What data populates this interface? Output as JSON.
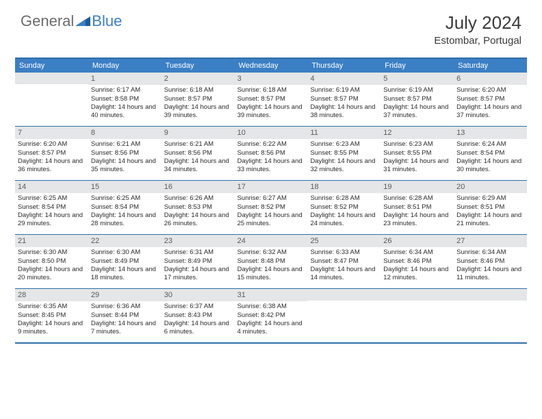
{
  "logo": {
    "textA": "General",
    "textB": "Blue"
  },
  "title": {
    "month": "July 2024",
    "location": "Estombar, Portugal"
  },
  "colors": {
    "header_bg": "#3b7fc4",
    "header_text": "#ffffff",
    "border": "#2f6fa8",
    "daynum_bg": "#e4e6e8",
    "daynum_text": "#5a5a5a",
    "body_text": "#2a2a2a",
    "logo_gray": "#6b6b6b",
    "logo_blue": "#3b7fc4"
  },
  "dayHeaders": [
    "Sunday",
    "Monday",
    "Tuesday",
    "Wednesday",
    "Thursday",
    "Friday",
    "Saturday"
  ],
  "weeks": [
    [
      {
        "day": "",
        "sunrise": "",
        "sunset": "",
        "daylight": ""
      },
      {
        "day": "1",
        "sunrise": "Sunrise: 6:17 AM",
        "sunset": "Sunset: 8:58 PM",
        "daylight": "Daylight: 14 hours and 40 minutes."
      },
      {
        "day": "2",
        "sunrise": "Sunrise: 6:18 AM",
        "sunset": "Sunset: 8:57 PM",
        "daylight": "Daylight: 14 hours and 39 minutes."
      },
      {
        "day": "3",
        "sunrise": "Sunrise: 6:18 AM",
        "sunset": "Sunset: 8:57 PM",
        "daylight": "Daylight: 14 hours and 39 minutes."
      },
      {
        "day": "4",
        "sunrise": "Sunrise: 6:19 AM",
        "sunset": "Sunset: 8:57 PM",
        "daylight": "Daylight: 14 hours and 38 minutes."
      },
      {
        "day": "5",
        "sunrise": "Sunrise: 6:19 AM",
        "sunset": "Sunset: 8:57 PM",
        "daylight": "Daylight: 14 hours and 37 minutes."
      },
      {
        "day": "6",
        "sunrise": "Sunrise: 6:20 AM",
        "sunset": "Sunset: 8:57 PM",
        "daylight": "Daylight: 14 hours and 37 minutes."
      }
    ],
    [
      {
        "day": "7",
        "sunrise": "Sunrise: 6:20 AM",
        "sunset": "Sunset: 8:57 PM",
        "daylight": "Daylight: 14 hours and 36 minutes."
      },
      {
        "day": "8",
        "sunrise": "Sunrise: 6:21 AM",
        "sunset": "Sunset: 8:56 PM",
        "daylight": "Daylight: 14 hours and 35 minutes."
      },
      {
        "day": "9",
        "sunrise": "Sunrise: 6:21 AM",
        "sunset": "Sunset: 8:56 PM",
        "daylight": "Daylight: 14 hours and 34 minutes."
      },
      {
        "day": "10",
        "sunrise": "Sunrise: 6:22 AM",
        "sunset": "Sunset: 8:56 PM",
        "daylight": "Daylight: 14 hours and 33 minutes."
      },
      {
        "day": "11",
        "sunrise": "Sunrise: 6:23 AM",
        "sunset": "Sunset: 8:55 PM",
        "daylight": "Daylight: 14 hours and 32 minutes."
      },
      {
        "day": "12",
        "sunrise": "Sunrise: 6:23 AM",
        "sunset": "Sunset: 8:55 PM",
        "daylight": "Daylight: 14 hours and 31 minutes."
      },
      {
        "day": "13",
        "sunrise": "Sunrise: 6:24 AM",
        "sunset": "Sunset: 8:54 PM",
        "daylight": "Daylight: 14 hours and 30 minutes."
      }
    ],
    [
      {
        "day": "14",
        "sunrise": "Sunrise: 6:25 AM",
        "sunset": "Sunset: 8:54 PM",
        "daylight": "Daylight: 14 hours and 29 minutes."
      },
      {
        "day": "15",
        "sunrise": "Sunrise: 6:25 AM",
        "sunset": "Sunset: 8:54 PM",
        "daylight": "Daylight: 14 hours and 28 minutes."
      },
      {
        "day": "16",
        "sunrise": "Sunrise: 6:26 AM",
        "sunset": "Sunset: 8:53 PM",
        "daylight": "Daylight: 14 hours and 26 minutes."
      },
      {
        "day": "17",
        "sunrise": "Sunrise: 6:27 AM",
        "sunset": "Sunset: 8:52 PM",
        "daylight": "Daylight: 14 hours and 25 minutes."
      },
      {
        "day": "18",
        "sunrise": "Sunrise: 6:28 AM",
        "sunset": "Sunset: 8:52 PM",
        "daylight": "Daylight: 14 hours and 24 minutes."
      },
      {
        "day": "19",
        "sunrise": "Sunrise: 6:28 AM",
        "sunset": "Sunset: 8:51 PM",
        "daylight": "Daylight: 14 hours and 23 minutes."
      },
      {
        "day": "20",
        "sunrise": "Sunrise: 6:29 AM",
        "sunset": "Sunset: 8:51 PM",
        "daylight": "Daylight: 14 hours and 21 minutes."
      }
    ],
    [
      {
        "day": "21",
        "sunrise": "Sunrise: 6:30 AM",
        "sunset": "Sunset: 8:50 PM",
        "daylight": "Daylight: 14 hours and 20 minutes."
      },
      {
        "day": "22",
        "sunrise": "Sunrise: 6:30 AM",
        "sunset": "Sunset: 8:49 PM",
        "daylight": "Daylight: 14 hours and 18 minutes."
      },
      {
        "day": "23",
        "sunrise": "Sunrise: 6:31 AM",
        "sunset": "Sunset: 8:49 PM",
        "daylight": "Daylight: 14 hours and 17 minutes."
      },
      {
        "day": "24",
        "sunrise": "Sunrise: 6:32 AM",
        "sunset": "Sunset: 8:48 PM",
        "daylight": "Daylight: 14 hours and 15 minutes."
      },
      {
        "day": "25",
        "sunrise": "Sunrise: 6:33 AM",
        "sunset": "Sunset: 8:47 PM",
        "daylight": "Daylight: 14 hours and 14 minutes."
      },
      {
        "day": "26",
        "sunrise": "Sunrise: 6:34 AM",
        "sunset": "Sunset: 8:46 PM",
        "daylight": "Daylight: 14 hours and 12 minutes."
      },
      {
        "day": "27",
        "sunrise": "Sunrise: 6:34 AM",
        "sunset": "Sunset: 8:46 PM",
        "daylight": "Daylight: 14 hours and 11 minutes."
      }
    ],
    [
      {
        "day": "28",
        "sunrise": "Sunrise: 6:35 AM",
        "sunset": "Sunset: 8:45 PM",
        "daylight": "Daylight: 14 hours and 9 minutes."
      },
      {
        "day": "29",
        "sunrise": "Sunrise: 6:36 AM",
        "sunset": "Sunset: 8:44 PM",
        "daylight": "Daylight: 14 hours and 7 minutes."
      },
      {
        "day": "30",
        "sunrise": "Sunrise: 6:37 AM",
        "sunset": "Sunset: 8:43 PM",
        "daylight": "Daylight: 14 hours and 6 minutes."
      },
      {
        "day": "31",
        "sunrise": "Sunrise: 6:38 AM",
        "sunset": "Sunset: 8:42 PM",
        "daylight": "Daylight: 14 hours and 4 minutes."
      },
      {
        "day": "",
        "sunrise": "",
        "sunset": "",
        "daylight": ""
      },
      {
        "day": "",
        "sunrise": "",
        "sunset": "",
        "daylight": ""
      },
      {
        "day": "",
        "sunrise": "",
        "sunset": "",
        "daylight": ""
      }
    ]
  ]
}
